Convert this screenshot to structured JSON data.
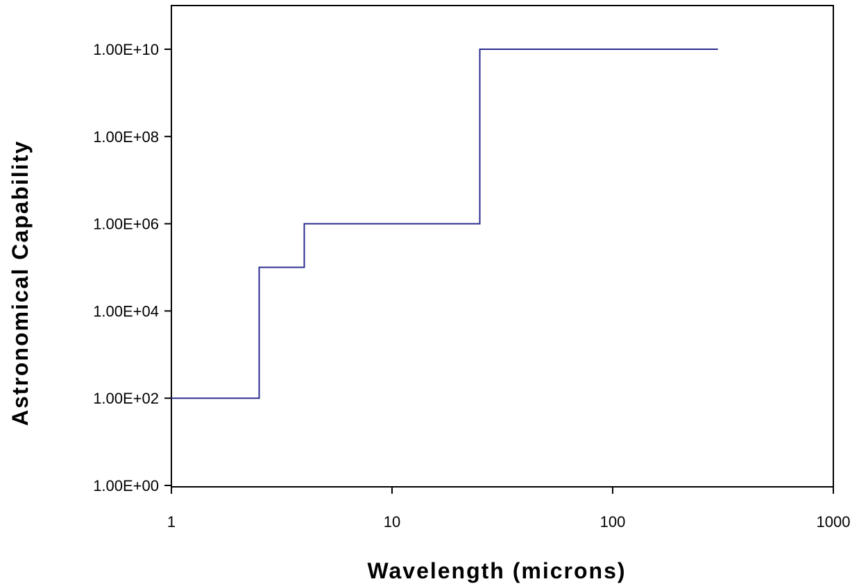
{
  "chart_data": {
    "type": "line",
    "title": "",
    "xlabel": "Wavelength (microns)",
    "ylabel": "Astronomical Capability",
    "x_scale": "log",
    "y_scale": "log",
    "xlim": [
      1,
      1000
    ],
    "ylim": [
      1,
      100000000000.0
    ],
    "x_ticks": [
      {
        "value": 1,
        "label": "1"
      },
      {
        "value": 10,
        "label": "10"
      },
      {
        "value": 100,
        "label": "100"
      },
      {
        "value": 1000,
        "label": "1000"
      }
    ],
    "y_ticks": [
      {
        "value": 1,
        "label": "1.00E+00"
      },
      {
        "value": 100,
        "label": "1.00E+02"
      },
      {
        "value": 10000,
        "label": "1.00E+04"
      },
      {
        "value": 1000000,
        "label": "1.00E+06"
      },
      {
        "value": 100000000,
        "label": "1.00E+08"
      },
      {
        "value": 10000000000,
        "label": "1.00E+10"
      }
    ],
    "grid": false,
    "legend": "none",
    "series": [
      {
        "color": "#2b2d8f",
        "step": "post",
        "x": [
          1,
          2.5,
          2.5,
          4,
          4,
          25,
          25,
          300
        ],
        "y": [
          100,
          100,
          100000,
          100000,
          1000000,
          1000000,
          10000000000,
          10000000000
        ]
      }
    ]
  }
}
